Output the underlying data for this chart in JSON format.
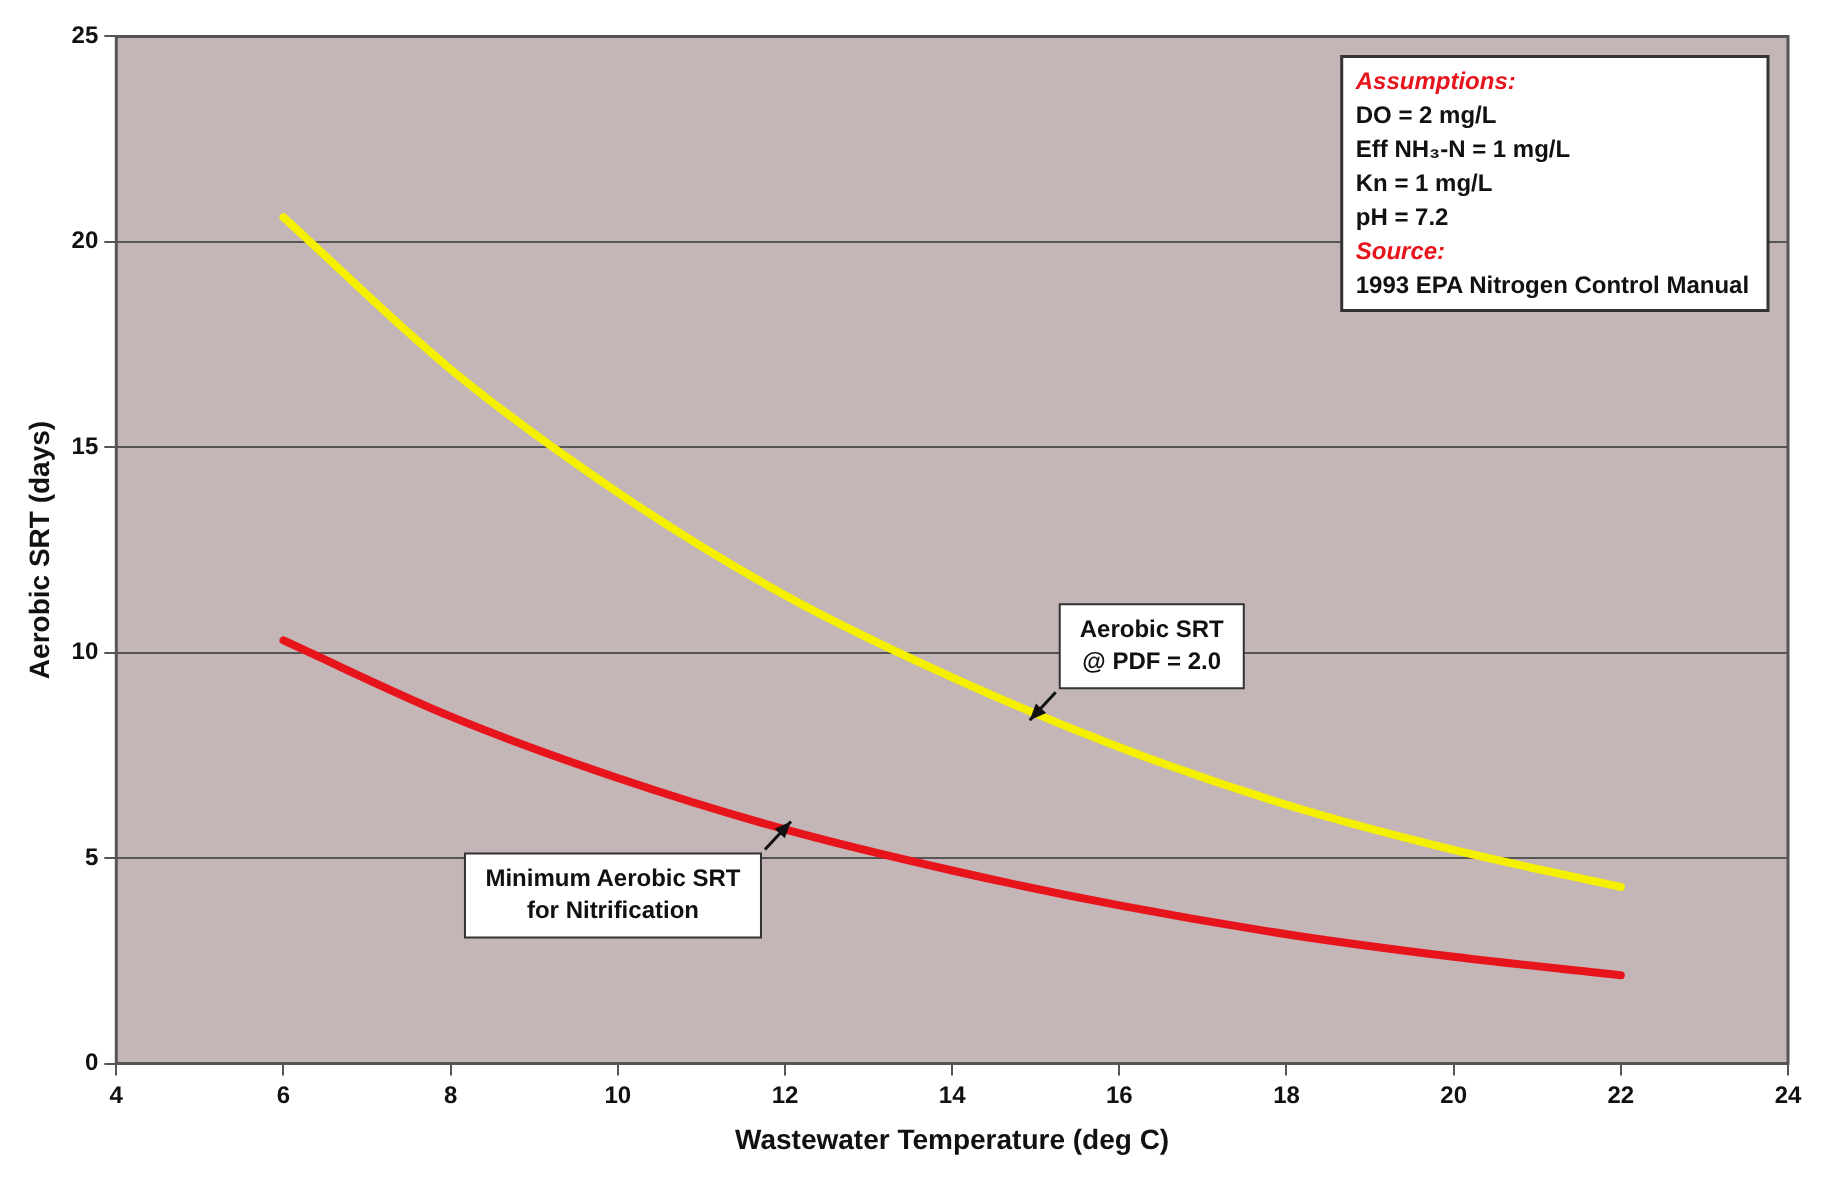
{
  "chart_data": {
    "type": "line",
    "xlabel": "Wastewater Temperature (deg C)",
    "ylabel": "Aerobic SRT (days)",
    "xlim": [
      4,
      24
    ],
    "xticks": [
      4,
      6,
      8,
      10,
      12,
      14,
      16,
      18,
      20,
      22,
      24
    ],
    "ylim": [
      0,
      25
    ],
    "yticks": [
      0,
      5,
      10,
      15,
      20,
      25
    ],
    "grid": "y",
    "legend": false,
    "marker": "none",
    "line_style": "solid",
    "x": [
      6,
      8,
      10,
      12,
      14,
      16,
      18,
      20,
      22
    ],
    "series": [
      {
        "name": "Aerobic SRT @ PDF = 2.0",
        "color": "#f5f000",
        "values": [
          20.6,
          16.9,
          13.9,
          11.4,
          9.4,
          7.7,
          6.3,
          5.2,
          4.3
        ]
      },
      {
        "name": "Minimum Aerobic SRT for Nitrification",
        "color": "#e8141c",
        "values": [
          10.3,
          8.45,
          6.95,
          5.7,
          4.7,
          3.85,
          3.15,
          2.6,
          2.15
        ]
      }
    ],
    "annotations": [
      "Assumptions:",
      "DO = 2 mg/L",
      "Eff NH₃-N = 1 mg/L",
      "Kn = 1 mg/L",
      "pH = 7.2",
      "Source:",
      "1993 EPA Nitrogen Control Manual"
    ]
  }
}
